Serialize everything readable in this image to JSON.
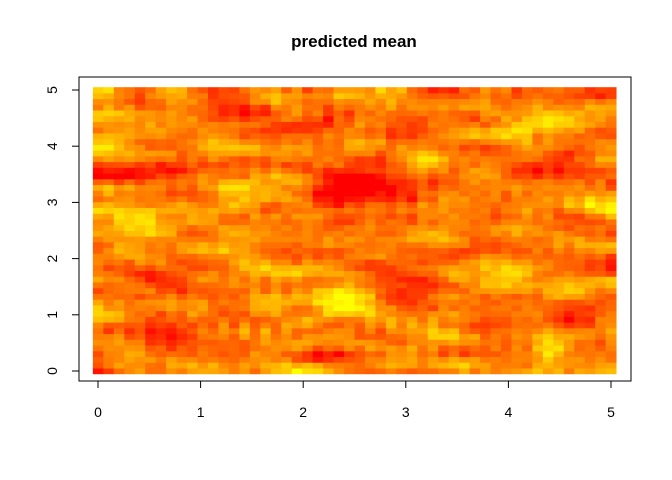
{
  "chart_data": {
    "type": "heatmap",
    "title": "predicted mean",
    "xlabel": "",
    "ylabel": "",
    "xlim": [
      0,
      5
    ],
    "ylim": [
      0,
      5
    ],
    "x_ticks": [
      0,
      1,
      2,
      3,
      4,
      5
    ],
    "y_ticks": [
      0,
      1,
      2,
      3,
      4,
      5
    ],
    "x_tick_labels": [
      "0",
      "1",
      "2",
      "3",
      "4",
      "5"
    ],
    "y_tick_labels": [
      "0",
      "1",
      "2",
      "3",
      "4",
      "5"
    ],
    "grid": false,
    "legend": "none",
    "colormap": "heat.colors",
    "color_scale": [
      "#FF0000",
      "#FF4000",
      "#FF8000",
      "#FFBF00",
      "#FFFF00"
    ],
    "grid_cols": 50,
    "grid_rows": 50,
    "value_range": [
      0,
      1
    ],
    "hotspots": [
      {
        "x": 2.5,
        "y": 3.3,
        "sx": 0.45,
        "sy": 0.22,
        "amp": -0.55
      },
      {
        "x": 2.1,
        "y": 4.4,
        "sx": 0.2,
        "sy": 0.12,
        "amp": -0.35
      },
      {
        "x": 1.4,
        "y": 4.6,
        "sx": 0.25,
        "sy": 0.15,
        "amp": -0.3
      },
      {
        "x": 4.3,
        "y": 3.7,
        "sx": 0.3,
        "sy": 0.15,
        "amp": -0.35
      },
      {
        "x": 4.4,
        "y": 1.0,
        "sx": 0.35,
        "sy": 0.2,
        "amp": -0.4
      },
      {
        "x": 2.3,
        "y": 0.25,
        "sx": 0.2,
        "sy": 0.1,
        "amp": -0.4
      },
      {
        "x": 0.3,
        "y": 3.5,
        "sx": 0.3,
        "sy": 0.3,
        "amp": -0.3
      },
      {
        "x": 3.0,
        "y": 1.5,
        "sx": 0.3,
        "sy": 0.2,
        "amp": -0.3
      },
      {
        "x": 0.6,
        "y": 1.6,
        "sx": 0.2,
        "sy": 0.2,
        "amp": -0.3
      },
      {
        "x": 4.9,
        "y": 5.0,
        "sx": 0.2,
        "sy": 0.15,
        "amp": -0.35
      },
      {
        "x": 3.5,
        "y": 4.2,
        "sx": 0.2,
        "sy": 0.2,
        "amp": -0.2
      },
      {
        "x": 0.7,
        "y": 0.7,
        "sx": 0.3,
        "sy": 0.2,
        "amp": -0.25
      },
      {
        "x": 2.5,
        "y": 1.4,
        "sx": 0.25,
        "sy": 0.2,
        "amp": 0.35
      },
      {
        "x": 3.2,
        "y": 3.7,
        "sx": 0.2,
        "sy": 0.2,
        "amp": 0.3
      },
      {
        "x": 4.3,
        "y": 4.3,
        "sx": 0.3,
        "sy": 0.2,
        "amp": 0.35
      },
      {
        "x": 0.4,
        "y": 2.7,
        "sx": 0.3,
        "sy": 0.3,
        "amp": 0.3
      },
      {
        "x": 1.8,
        "y": 3.4,
        "sx": 0.25,
        "sy": 0.2,
        "amp": 0.25
      },
      {
        "x": 3.8,
        "y": 1.8,
        "sx": 0.3,
        "sy": 0.2,
        "amp": 0.3
      },
      {
        "x": 1.2,
        "y": 2.0,
        "sx": 0.3,
        "sy": 0.2,
        "amp": 0.2
      },
      {
        "x": 4.4,
        "y": 0.4,
        "sx": 0.1,
        "sy": 0.3,
        "amp": 0.35
      },
      {
        "x": 2.0,
        "y": 0.1,
        "sx": 0.15,
        "sy": 0.1,
        "amp": 0.35
      }
    ]
  }
}
